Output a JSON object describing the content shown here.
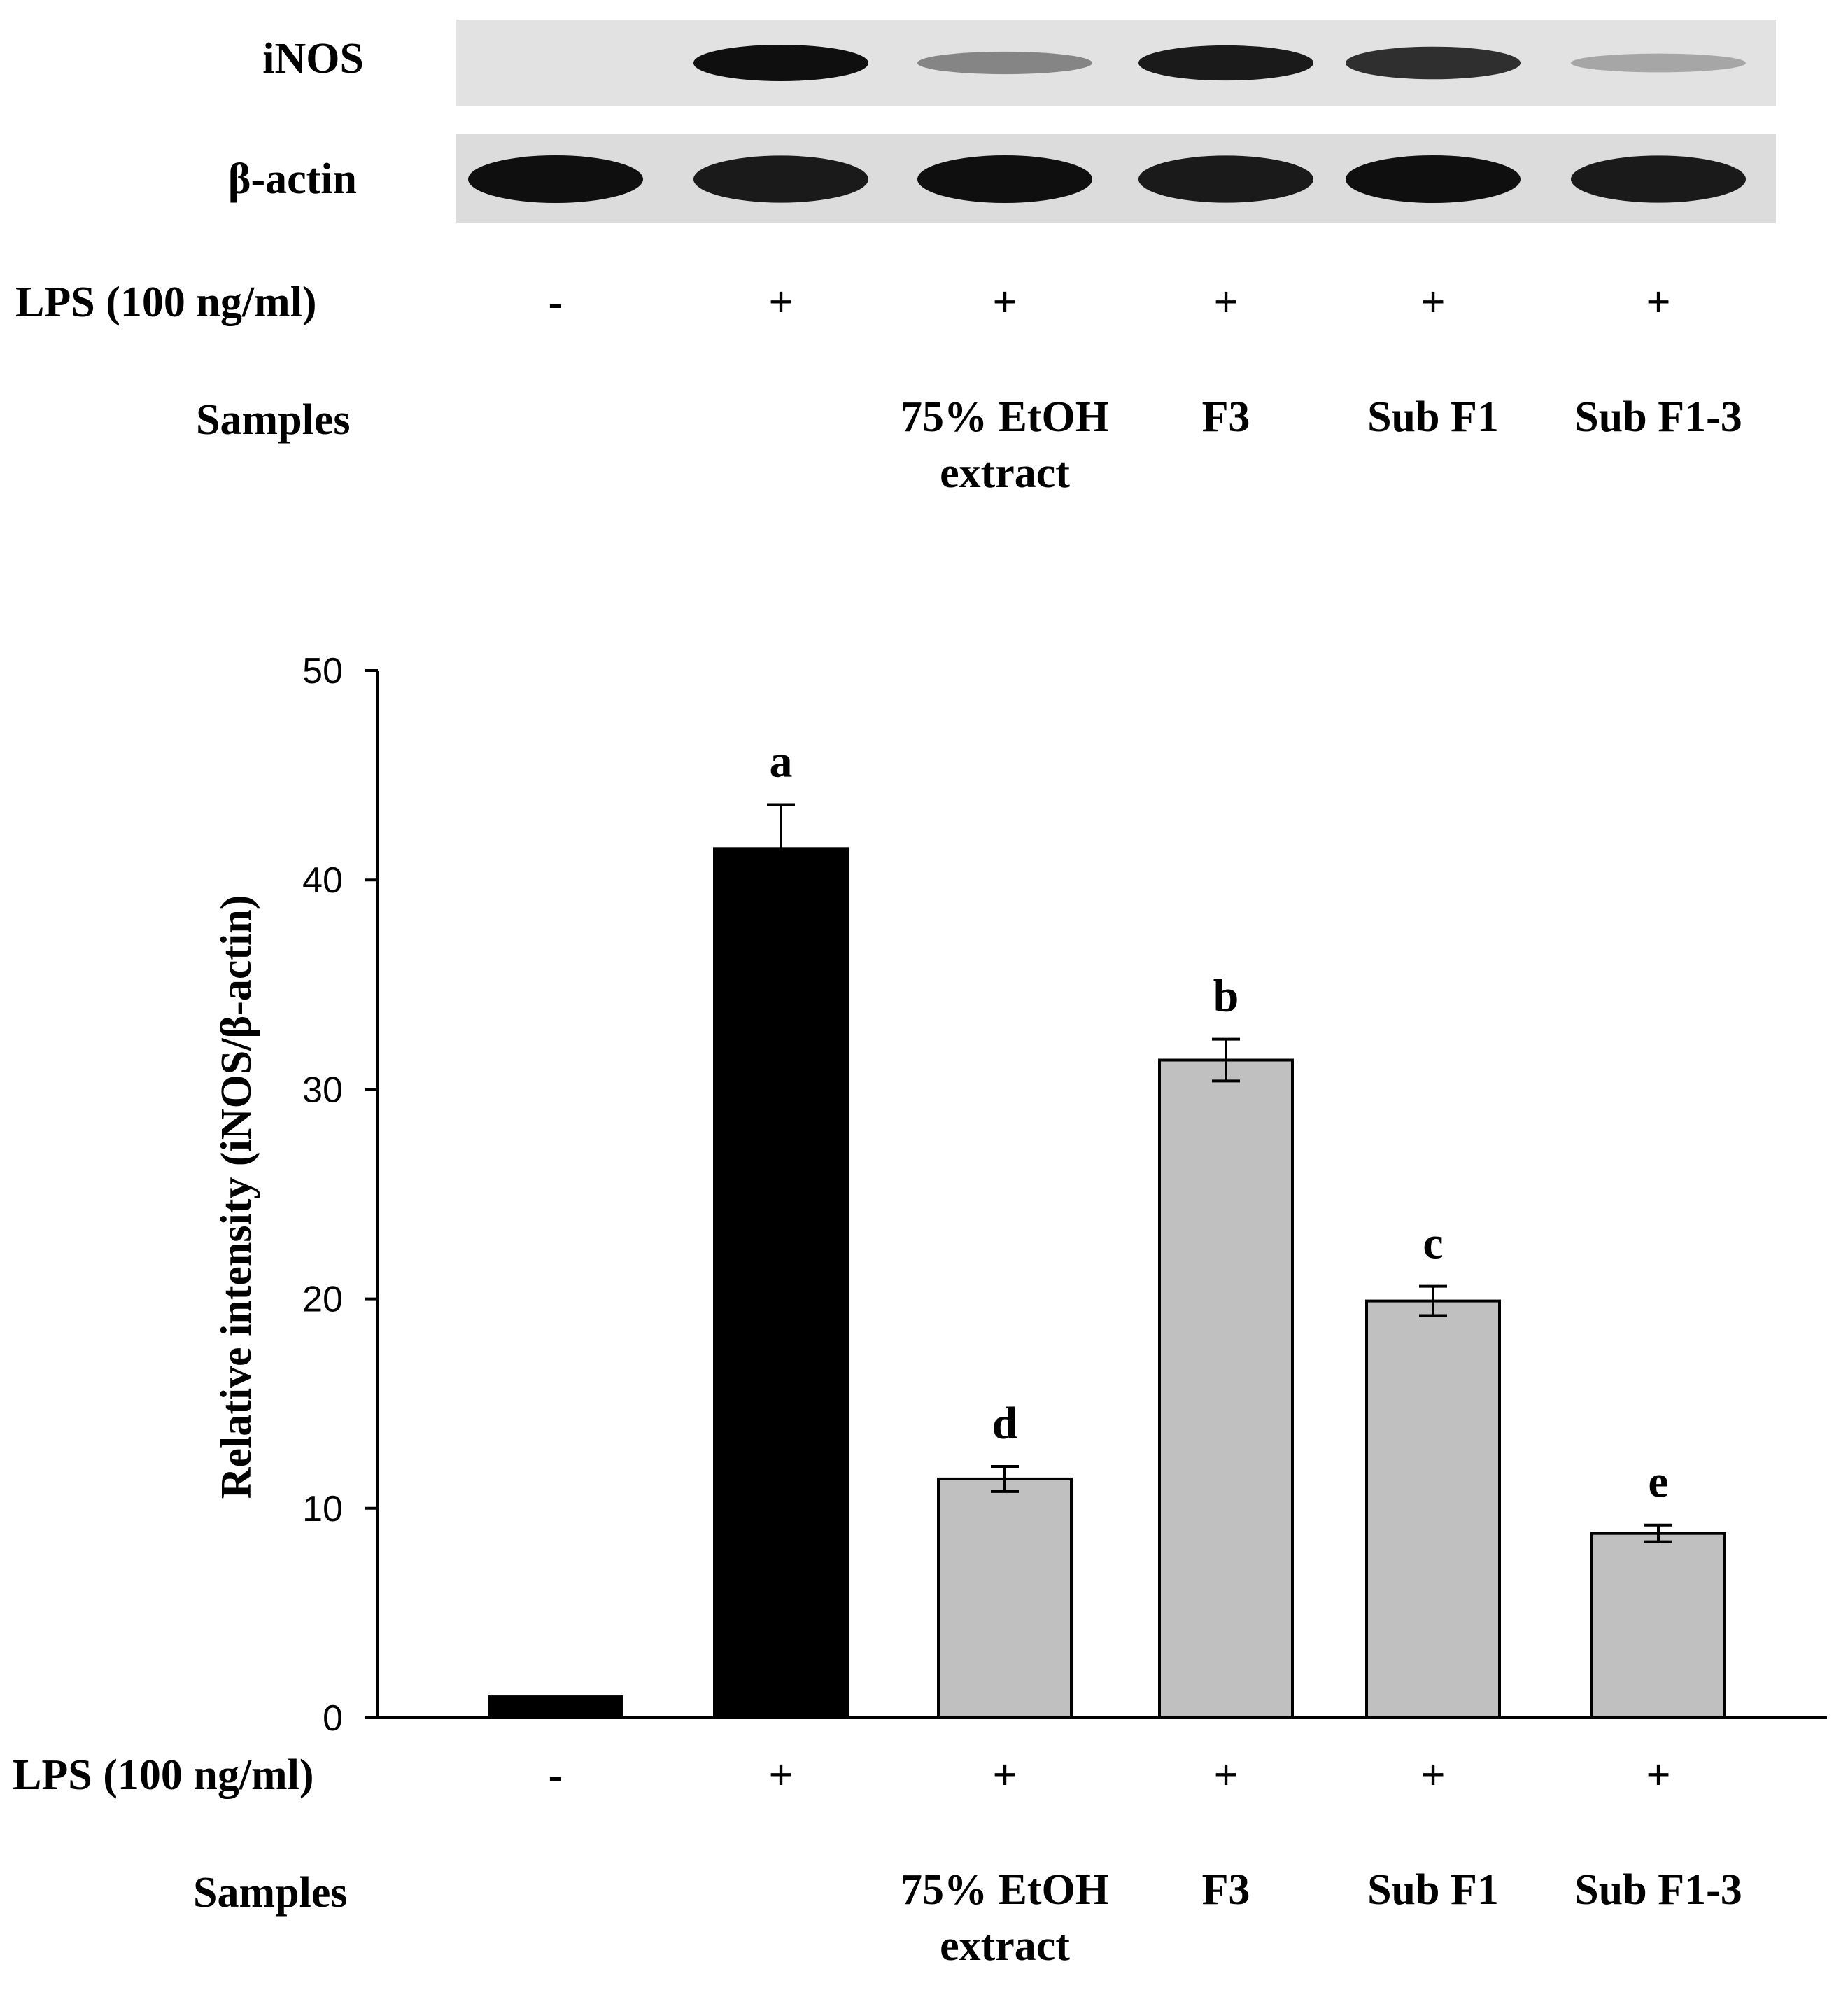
{
  "blot": {
    "rows": [
      {
        "label": "iNOS",
        "band_intensity": [
          0.0,
          1.0,
          0.45,
          0.95,
          0.85,
          0.3
        ]
      },
      {
        "label": "β-actin",
        "band_intensity": [
          1.0,
          0.95,
          1.0,
          0.95,
          1.0,
          0.95
        ]
      }
    ]
  },
  "treatment": {
    "lps_label": "LPS (100 ng/ml)",
    "lps_values": [
      "-",
      "+",
      "+",
      "+",
      "+",
      "+"
    ],
    "samples_label": "Samples",
    "sample_names": [
      "",
      "",
      "75% EtOH\nextract",
      "F3",
      "Sub F1",
      "Sub F1-3"
    ]
  },
  "colors": {
    "lps_only": "#000000",
    "treated": "#c0c0c0"
  },
  "chart_data": {
    "type": "bar",
    "categories": [
      "-",
      "+",
      "75% EtOH extract",
      "F3",
      "Sub F1",
      "Sub F1-3"
    ],
    "values": [
      1.0,
      41.5,
      11.4,
      31.4,
      19.9,
      8.8
    ],
    "errors": [
      0,
      2.1,
      0.6,
      1.0,
      0.7,
      0.4
    ],
    "significance_letters": [
      "",
      "a",
      "d",
      "b",
      "c",
      "e"
    ],
    "ylabel": "Relative intensity (iNOS/β-actin)",
    "xlabel": "",
    "ylim": [
      0,
      50
    ],
    "yticks": [
      0,
      10,
      20,
      30,
      40,
      50
    ],
    "grid": false,
    "legend": "none"
  }
}
